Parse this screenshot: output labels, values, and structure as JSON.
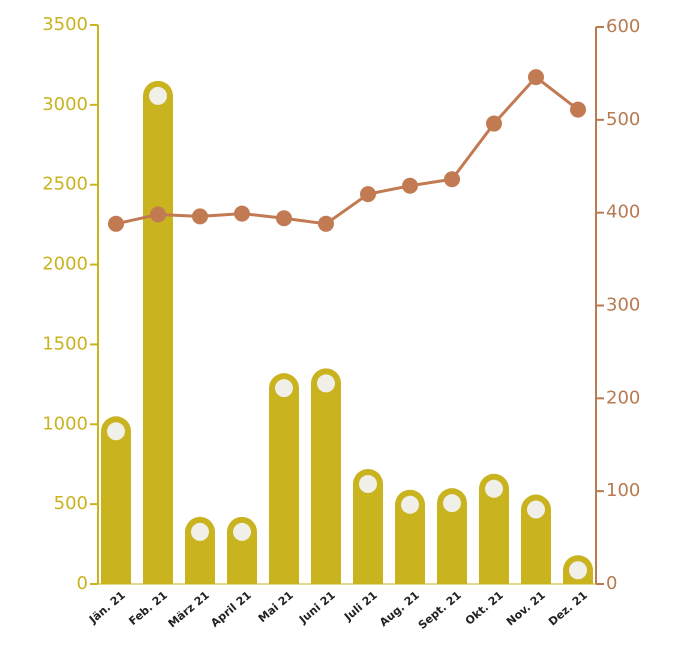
{
  "chart_data": {
    "type": "bar",
    "categories": [
      "Jän. 21",
      "Feb. 21",
      "März 21",
      "April 21",
      "Mai 21",
      "Juni 21",
      "Juli 21",
      "Aug. 21",
      "Sept. 21",
      "Okt. 21",
      "Nov. 21",
      "Dez. 21"
    ],
    "series": [
      {
        "type": "bar",
        "color": "#c9b31f",
        "values": [
          1050,
          3150,
          420,
          420,
          1320,
          1350,
          720,
          590,
          600,
          690,
          560,
          180
        ]
      },
      {
        "type": "line",
        "axis": "y2",
        "color": "#c27a52",
        "values": [
          388,
          398,
          396,
          399,
          394,
          388,
          420,
          429,
          436,
          496,
          546,
          511
        ]
      }
    ],
    "ylim": [
      0,
      3500
    ],
    "yticks": [
      0,
      500,
      1000,
      1500,
      2000,
      2500,
      3000,
      3500
    ],
    "y2lim": [
      0,
      600
    ],
    "y2ticks": [
      0,
      100,
      200,
      300,
      400,
      500,
      600
    ],
    "y_color": "#c9b31f",
    "y2_color": "#b87a50"
  }
}
